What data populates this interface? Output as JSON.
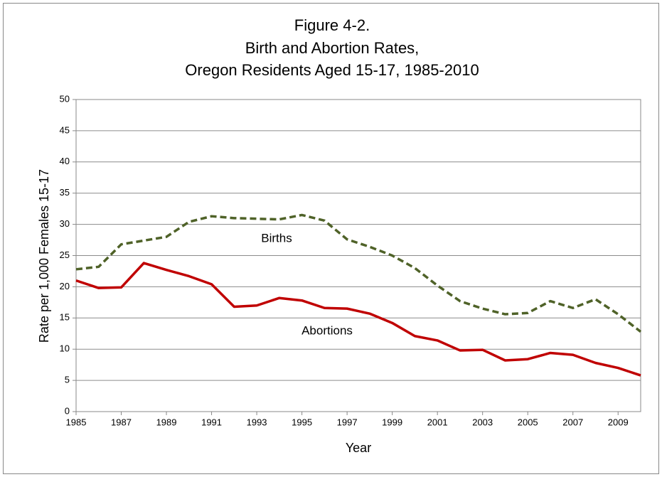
{
  "chart_data": {
    "type": "line",
    "title": [
      "Figure 4-2.",
      "Birth and Abortion Rates,",
      "Oregon Residents Aged 15-17, 1985-2010"
    ],
    "x_label": "Year",
    "y_label": "Rate per 1,000 Females 15-17",
    "x": [
      1985,
      1986,
      1987,
      1988,
      1989,
      1990,
      1991,
      1992,
      1993,
      1994,
      1995,
      1996,
      1997,
      1998,
      1999,
      2000,
      2001,
      2002,
      2003,
      2004,
      2005,
      2006,
      2007,
      2008,
      2009,
      2010
    ],
    "series": [
      {
        "name": "Births",
        "color": "#4f6228",
        "dashed": true,
        "values": [
          22.8,
          23.2,
          26.8,
          27.4,
          28.0,
          30.4,
          31.3,
          31.0,
          30.9,
          30.8,
          31.5,
          30.6,
          27.6,
          26.4,
          25.0,
          23.0,
          20.2,
          17.7,
          16.5,
          15.6,
          15.8,
          17.7,
          16.6,
          18.0,
          15.6,
          12.8
        ]
      },
      {
        "name": "Abortions",
        "color": "#c00000",
        "dashed": false,
        "values": [
          21.0,
          19.8,
          19.9,
          23.8,
          22.7,
          21.7,
          20.4,
          16.8,
          17.0,
          18.2,
          17.8,
          16.6,
          16.5,
          15.7,
          14.2,
          12.1,
          11.4,
          9.8,
          9.9,
          8.2,
          8.4,
          9.4,
          9.1,
          7.8,
          7.0,
          5.8
        ]
      }
    ],
    "xlim": [
      1985,
      2010
    ],
    "xticks": [
      1985,
      1987,
      1989,
      1991,
      1993,
      1995,
      1997,
      1999,
      2001,
      2003,
      2005,
      2007,
      2009
    ],
    "ylim": [
      0,
      50
    ],
    "yticks": [
      0,
      5,
      10,
      15,
      20,
      25,
      30,
      35,
      40,
      45,
      50
    ],
    "grid": true
  }
}
